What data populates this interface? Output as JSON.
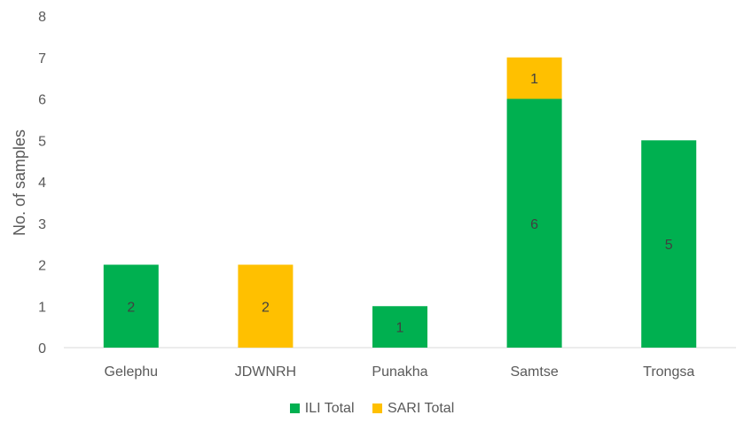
{
  "chart_data": {
    "type": "bar",
    "stacked": true,
    "categories": [
      "Gelephu",
      "JDWNRH",
      "Punakha",
      "Samtse",
      "Trongsa"
    ],
    "series": [
      {
        "name": "ILI Total",
        "values": [
          2,
          0,
          1,
          6,
          5
        ],
        "color": "#00B050"
      },
      {
        "name": "SARI Total",
        "values": [
          0,
          2,
          0,
          1,
          0
        ],
        "color": "#FFC000"
      }
    ],
    "ylabel": "No. of samples",
    "xlabel": "",
    "ylim": [
      0,
      8
    ],
    "yticks": [
      0,
      1,
      2,
      3,
      4,
      5,
      6,
      7,
      8
    ],
    "grid": false,
    "legend": "bottom"
  }
}
